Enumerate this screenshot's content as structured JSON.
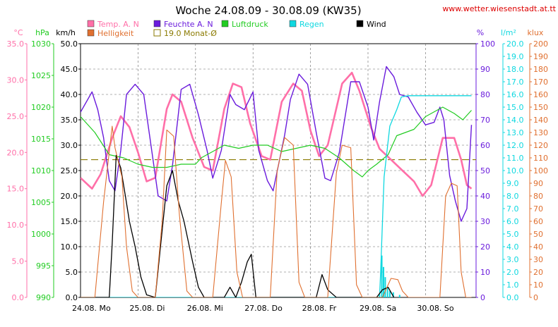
{
  "title": "Woche 24.08.09 - 30.08.09 (KW35)",
  "site": "www.wetter.wiesenstadt.at.tt",
  "chart_data": {
    "type": "line",
    "title": "Woche 24.08.09 - 30.08.09 (KW35)",
    "grid": true,
    "x_days": [
      "24.08. Mo",
      "25.08. Di",
      "26.08. Mi",
      "27.08. Do",
      "28.08. Fr",
      "29.08. Sa",
      "30.08. So"
    ],
    "axes": [
      {
        "key": "temp",
        "unit": "°C",
        "min": 0,
        "max": 35,
        "ticks": [
          "0.0",
          "5.0",
          "10.0",
          "15.0",
          "20.0",
          "25.0",
          "30.0",
          "35.0"
        ],
        "color": "#ff6fa8"
      },
      {
        "key": "pressure",
        "unit": "hPa",
        "min": 990,
        "max": 1030,
        "ticks": [
          "990",
          "995",
          "1000",
          "1005",
          "1010",
          "1015",
          "1020",
          "1025",
          "1030"
        ],
        "color": "#22cc22"
      },
      {
        "key": "wind",
        "unit": "km/h",
        "min": 0,
        "max": 50,
        "ticks": [
          "0.0",
          "5.0",
          "10.0",
          "15.0",
          "20.0",
          "25.0",
          "30.0",
          "35.0",
          "40.0",
          "45.0",
          "50.0"
        ],
        "color": "#000000"
      },
      {
        "key": "humidity",
        "unit": "%",
        "min": 0,
        "max": 100,
        "ticks": [
          "0",
          "10",
          "20",
          "30",
          "40",
          "50",
          "60",
          "70",
          "80",
          "90",
          "100"
        ],
        "color": "#6a1bdc"
      },
      {
        "key": "rain",
        "unit": "l/m²",
        "min": 0,
        "max": 20,
        "ticks": [
          "0.0",
          "1.0",
          "2.0",
          "3.0",
          "4.0",
          "5.0",
          "6.0",
          "7.0",
          "8.0",
          "9.0",
          "10.0",
          "11.0",
          "12.0",
          "13.0",
          "14.0",
          "15.0",
          "16.0",
          "17.0",
          "18.0",
          "19.0",
          "20.0"
        ],
        "color": "#10d8e0"
      },
      {
        "key": "light",
        "unit": "klux",
        "min": 0,
        "max": 200,
        "ticks": [
          "0",
          "10",
          "20",
          "30",
          "40",
          "50",
          "60",
          "70",
          "80",
          "90",
          "100",
          "110",
          "120",
          "130",
          "140",
          "150",
          "160",
          "170",
          "180",
          "190",
          "200"
        ],
        "color": "#e07030"
      }
    ],
    "series": [
      {
        "name": "Temp. A. N",
        "axis": "temp",
        "color": "#ff6fa8",
        "points": [
          [
            0,
            16.5
          ],
          [
            0.2,
            15.0
          ],
          [
            0.35,
            17.0
          ],
          [
            0.55,
            22.0
          ],
          [
            0.7,
            25.0
          ],
          [
            0.85,
            23.5
          ],
          [
            1.0,
            20.0
          ],
          [
            1.15,
            16.0
          ],
          [
            1.3,
            16.5
          ],
          [
            1.5,
            26.0
          ],
          [
            1.6,
            28.0
          ],
          [
            1.75,
            27.0
          ],
          [
            1.95,
            22.0
          ],
          [
            2.15,
            18.0
          ],
          [
            2.3,
            17.5
          ],
          [
            2.5,
            26.0
          ],
          [
            2.65,
            29.5
          ],
          [
            2.8,
            29.0
          ],
          [
            2.95,
            24.0
          ],
          [
            3.15,
            19.5
          ],
          [
            3.3,
            19.0
          ],
          [
            3.5,
            27.0
          ],
          [
            3.7,
            29.5
          ],
          [
            3.85,
            28.5
          ],
          [
            4.0,
            23.0
          ],
          [
            4.15,
            19.5
          ],
          [
            4.3,
            21.0
          ],
          [
            4.55,
            29.5
          ],
          [
            4.72,
            31.0
          ],
          [
            4.85,
            28.5
          ],
          [
            5.05,
            23.5
          ],
          [
            5.2,
            20.5
          ],
          [
            5.4,
            19.0
          ],
          [
            5.6,
            17.5
          ],
          [
            5.8,
            16.0
          ],
          [
            5.95,
            14.0
          ],
          [
            6.1,
            15.5
          ],
          [
            6.3,
            22.0
          ],
          [
            6.5,
            22.0
          ],
          [
            6.62,
            19.0
          ],
          [
            6.72,
            15.5
          ],
          [
            6.8,
            15.0
          ]
        ]
      },
      {
        "name": "Feuchte A. N",
        "axis": "humidity",
        "color": "#6a1bdc",
        "points": [
          [
            0,
            73
          ],
          [
            0.2,
            81
          ],
          [
            0.3,
            74
          ],
          [
            0.4,
            63
          ],
          [
            0.5,
            46
          ],
          [
            0.6,
            42
          ],
          [
            0.7,
            58
          ],
          [
            0.8,
            80
          ],
          [
            0.95,
            84
          ],
          [
            1.1,
            80
          ],
          [
            1.2,
            64
          ],
          [
            1.35,
            40
          ],
          [
            1.5,
            38
          ],
          [
            1.6,
            52
          ],
          [
            1.75,
            82
          ],
          [
            1.9,
            84
          ],
          [
            2.05,
            72
          ],
          [
            2.2,
            58
          ],
          [
            2.3,
            47
          ],
          [
            2.45,
            58
          ],
          [
            2.6,
            80
          ],
          [
            2.7,
            76
          ],
          [
            2.85,
            74
          ],
          [
            3.0,
            81
          ],
          [
            3.1,
            58
          ],
          [
            3.25,
            46
          ],
          [
            3.35,
            42
          ],
          [
            3.55,
            64
          ],
          [
            3.65,
            78
          ],
          [
            3.8,
            88
          ],
          [
            3.95,
            84
          ],
          [
            4.1,
            65
          ],
          [
            4.25,
            47
          ],
          [
            4.35,
            46
          ],
          [
            4.5,
            57
          ],
          [
            4.7,
            85
          ],
          [
            4.85,
            85
          ],
          [
            5.0,
            75
          ],
          [
            5.1,
            62
          ],
          [
            5.2,
            77
          ],
          [
            5.32,
            91
          ],
          [
            5.45,
            87
          ],
          [
            5.55,
            80
          ],
          [
            5.7,
            79
          ],
          [
            5.85,
            73
          ],
          [
            6.0,
            68
          ],
          [
            6.15,
            69
          ],
          [
            6.25,
            75
          ],
          [
            6.32,
            70
          ],
          [
            6.42,
            48
          ],
          [
            6.52,
            38
          ],
          [
            6.62,
            30
          ],
          [
            6.72,
            35
          ],
          [
            6.8,
            68
          ]
        ]
      },
      {
        "name": "Luftdruck",
        "axis": "pressure",
        "color": "#22cc22",
        "points": [
          [
            0,
            1018.5
          ],
          [
            0.25,
            1016
          ],
          [
            0.5,
            1012.5
          ],
          [
            0.75,
            1012
          ],
          [
            1.0,
            1011
          ],
          [
            1.25,
            1010.5
          ],
          [
            1.5,
            1010.5
          ],
          [
            1.75,
            1011
          ],
          [
            2.0,
            1011
          ],
          [
            2.1,
            1012
          ],
          [
            2.3,
            1013
          ],
          [
            2.5,
            1014
          ],
          [
            2.75,
            1013.5
          ],
          [
            3.0,
            1014
          ],
          [
            3.25,
            1014
          ],
          [
            3.5,
            1013
          ],
          [
            3.75,
            1013.5
          ],
          [
            4.0,
            1014
          ],
          [
            4.25,
            1013.5
          ],
          [
            4.5,
            1012
          ],
          [
            4.75,
            1010
          ],
          [
            4.9,
            1009
          ],
          [
            5.0,
            1010
          ],
          [
            5.15,
            1011
          ],
          [
            5.35,
            1012.5
          ],
          [
            5.5,
            1015.5
          ],
          [
            5.65,
            1016
          ],
          [
            5.8,
            1016.5
          ],
          [
            6.0,
            1018.5
          ],
          [
            6.1,
            1019
          ],
          [
            6.3,
            1020
          ],
          [
            6.5,
            1019
          ],
          [
            6.65,
            1018
          ],
          [
            6.8,
            1019.5
          ]
        ]
      },
      {
        "name": "Regen",
        "axis": "rain",
        "color": "#10d8e0",
        "points": [
          [
            0,
            0
          ],
          [
            5.2,
            0
          ],
          [
            5.22,
            2.0
          ],
          [
            5.28,
            9.5
          ],
          [
            5.38,
            13.5
          ],
          [
            5.5,
            14.8
          ],
          [
            5.58,
            15.8
          ],
          [
            5.7,
            15.9
          ],
          [
            5.85,
            15.9
          ],
          [
            6.8,
            15.9
          ]
        ]
      },
      {
        "name": "Wind",
        "axis": "wind",
        "color": "#000000",
        "points": [
          [
            0,
            0
          ],
          [
            0.5,
            0
          ],
          [
            0.55,
            10.5
          ],
          [
            0.62,
            28.0
          ],
          [
            0.7,
            25.5
          ],
          [
            0.78,
            20.0
          ],
          [
            0.85,
            15.0
          ],
          [
            0.95,
            10.0
          ],
          [
            1.05,
            4.0
          ],
          [
            1.15,
            0.5
          ],
          [
            1.3,
            0
          ],
          [
            1.5,
            22.0
          ],
          [
            1.6,
            25.0
          ],
          [
            1.7,
            19.0
          ],
          [
            1.8,
            15.0
          ],
          [
            1.95,
            7.0
          ],
          [
            2.05,
            2.0
          ],
          [
            2.15,
            0
          ],
          [
            2.5,
            0
          ],
          [
            2.6,
            2.0
          ],
          [
            2.7,
            0
          ],
          [
            2.8,
            3.0
          ],
          [
            2.9,
            7.0
          ],
          [
            2.97,
            8.5
          ],
          [
            3.05,
            0
          ],
          [
            4.1,
            0
          ],
          [
            4.2,
            4.5
          ],
          [
            4.3,
            1.5
          ],
          [
            4.45,
            0
          ],
          [
            5.15,
            0
          ],
          [
            5.25,
            1.5
          ],
          [
            5.35,
            2.0
          ],
          [
            5.45,
            0
          ]
        ]
      },
      {
        "name": "Helligkeit",
        "axis": "light",
        "color": "#e07030",
        "points": [
          [
            0,
            0
          ],
          [
            0.25,
            0
          ],
          [
            0.4,
            75
          ],
          [
            0.55,
            135
          ],
          [
            0.6,
            118
          ],
          [
            0.72,
            95
          ],
          [
            0.8,
            40
          ],
          [
            0.9,
            5
          ],
          [
            1.0,
            0
          ],
          [
            1.3,
            0
          ],
          [
            1.42,
            60
          ],
          [
            1.5,
            132
          ],
          [
            1.62,
            127
          ],
          [
            1.72,
            65
          ],
          [
            1.85,
            5
          ],
          [
            1.95,
            0
          ],
          [
            2.3,
            0
          ],
          [
            2.45,
            75
          ],
          [
            2.52,
            108
          ],
          [
            2.62,
            95
          ],
          [
            2.72,
            20
          ],
          [
            2.82,
            0
          ],
          [
            3.3,
            0
          ],
          [
            3.42,
            100
          ],
          [
            3.55,
            126
          ],
          [
            3.7,
            120
          ],
          [
            3.8,
            12
          ],
          [
            3.9,
            0
          ],
          [
            4.3,
            0
          ],
          [
            4.45,
            98
          ],
          [
            4.55,
            120
          ],
          [
            4.7,
            118
          ],
          [
            4.8,
            10
          ],
          [
            4.9,
            0
          ],
          [
            5.25,
            0
          ],
          [
            5.4,
            15
          ],
          [
            5.52,
            14
          ],
          [
            5.6,
            5
          ],
          [
            5.7,
            0
          ],
          [
            6.25,
            0
          ],
          [
            6.35,
            80
          ],
          [
            6.45,
            90
          ],
          [
            6.55,
            88
          ],
          [
            6.62,
            20
          ],
          [
            6.7,
            0
          ],
          [
            6.8,
            0
          ]
        ]
      }
    ],
    "reference_lines": [
      {
        "name": "19.0 Monat-Ø",
        "axis": "temp",
        "value": 19.0,
        "color": "#8a7a00"
      }
    ]
  }
}
